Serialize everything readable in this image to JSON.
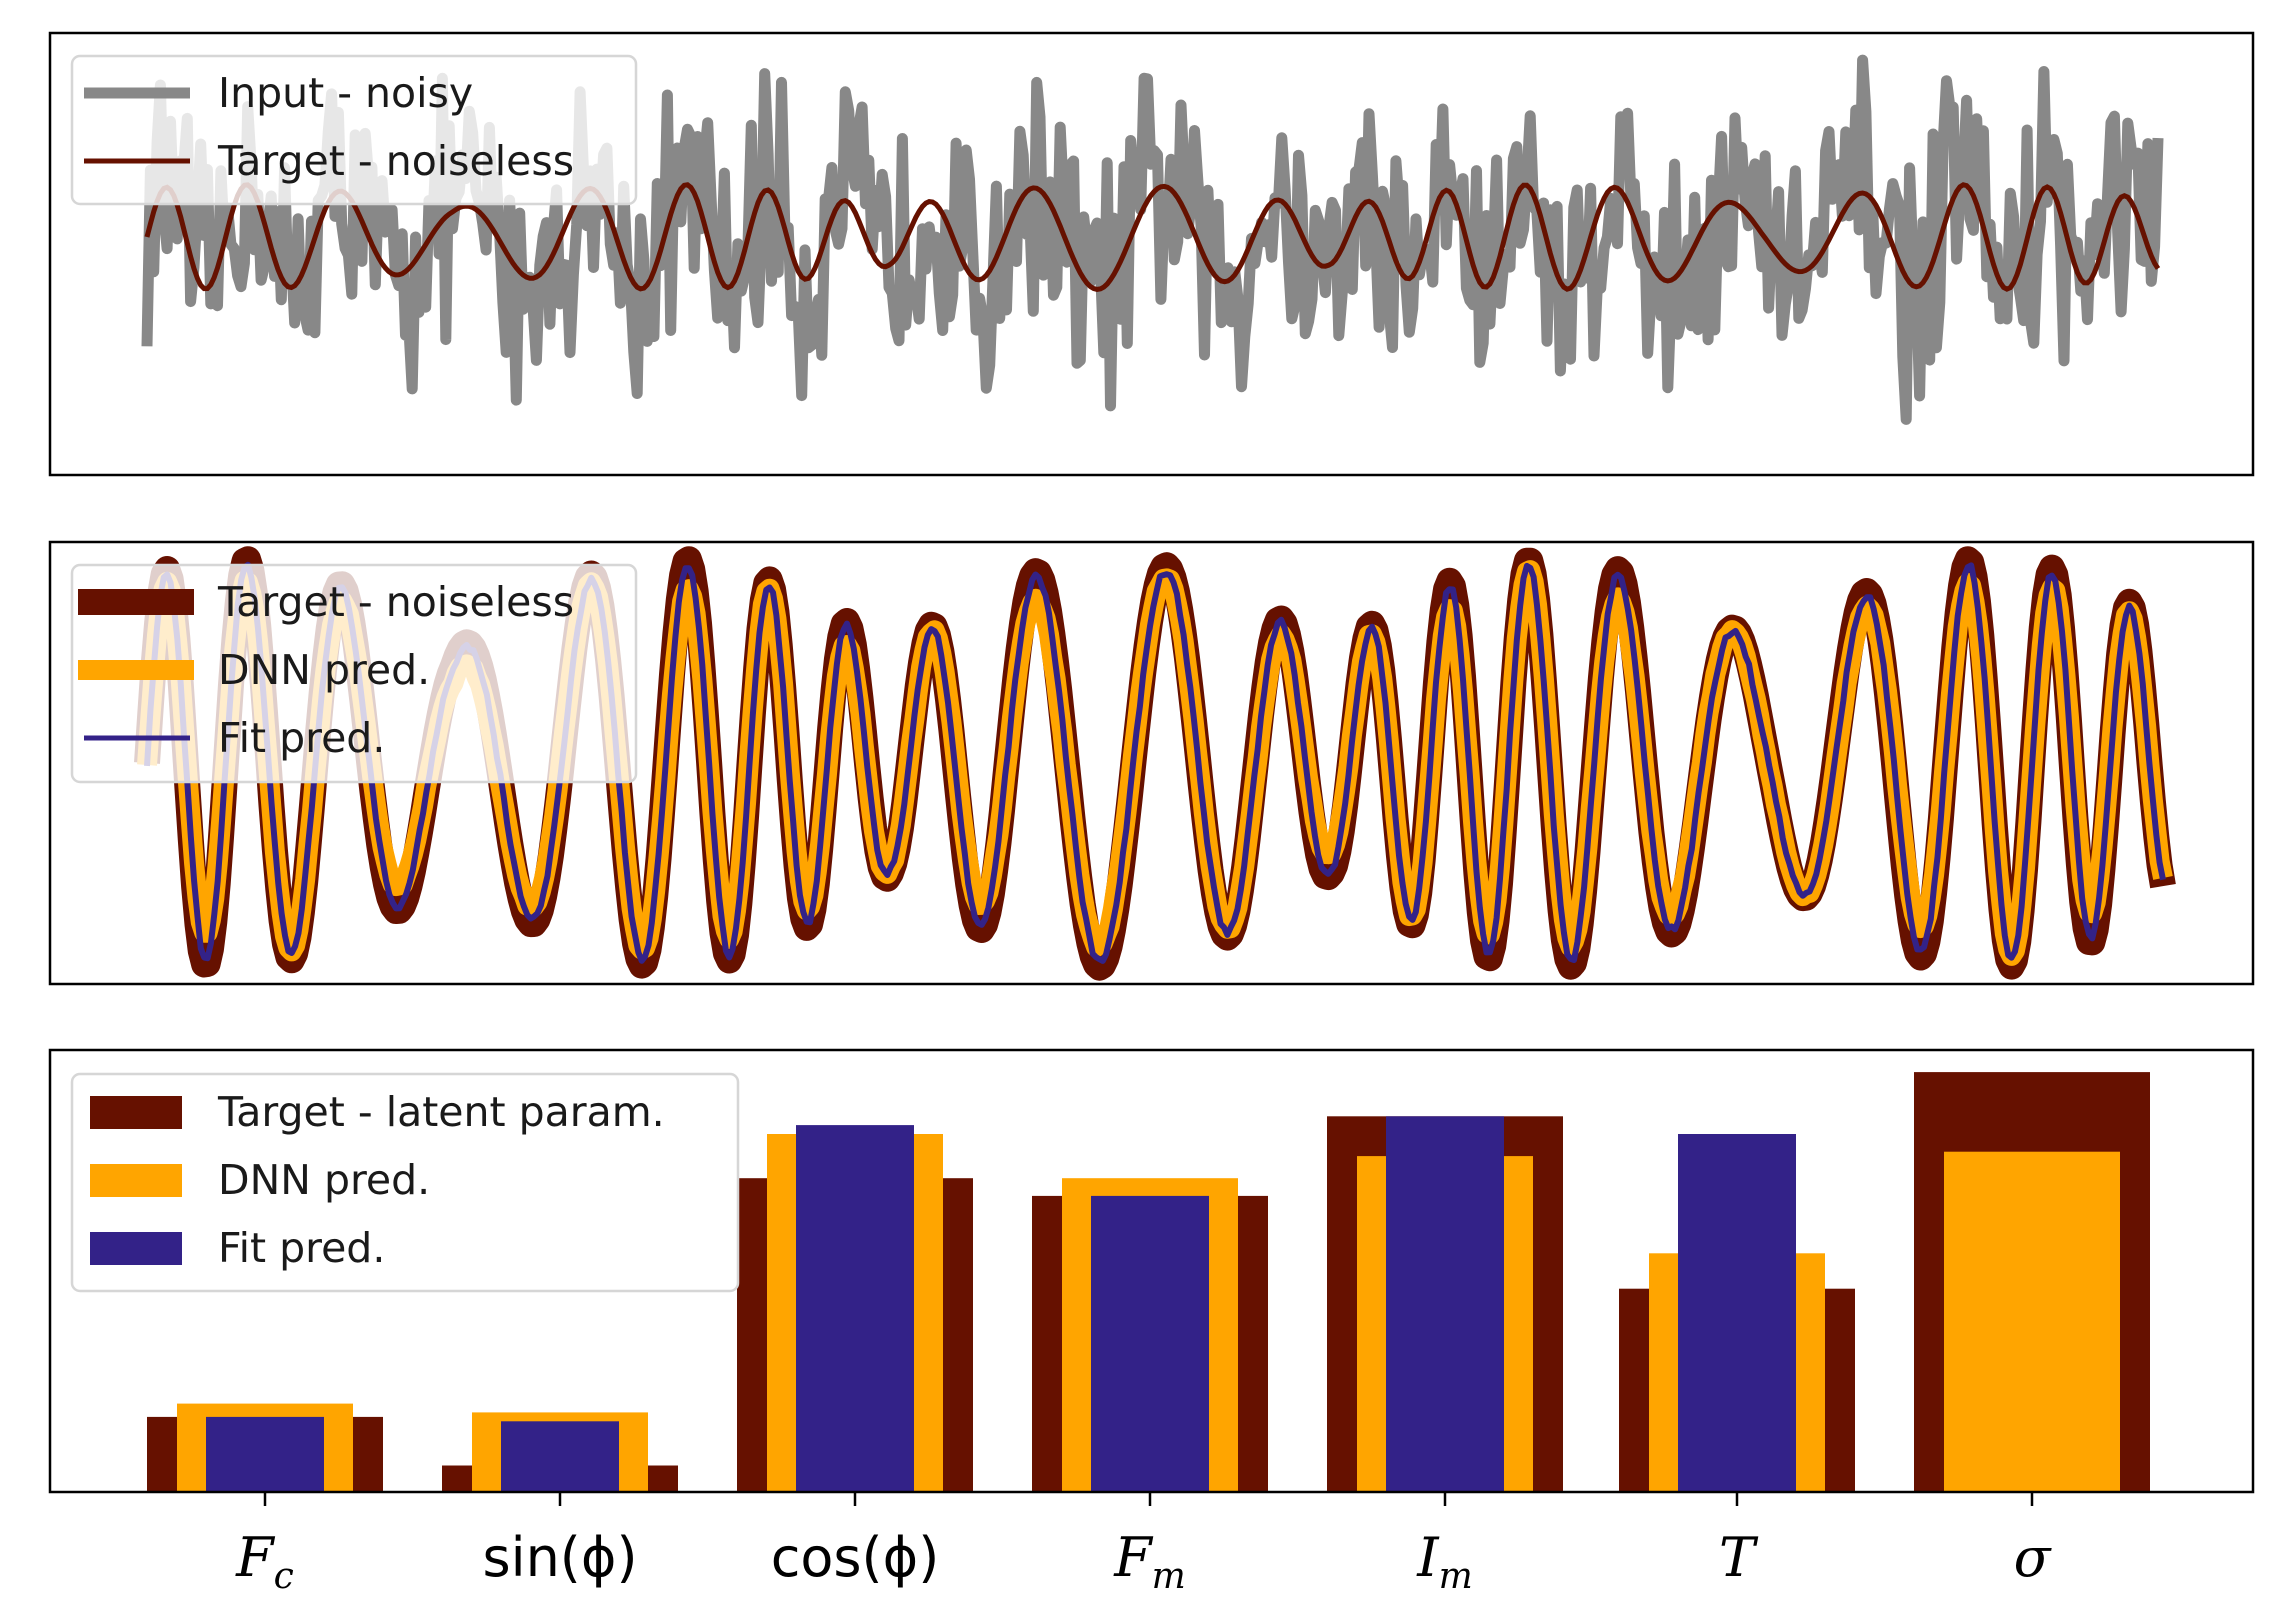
{
  "colors": {
    "input_noisy": "#888888",
    "target": "#661100",
    "dnn": "#ffa500",
    "fit": "#332288"
  },
  "chart_data": [
    {
      "type": "line",
      "panel": "top",
      "legend": [
        "Input - noisy",
        "Target - noiseless"
      ],
      "legend_position": "top-left",
      "grid": false,
      "xticks": false,
      "yticks": false,
      "series": [
        {
          "name": "Input - noisy",
          "style": "noisy thick gray line",
          "noise_amplitude": 0.45
        },
        {
          "name": "Target - noiseless",
          "style": "thin dark red line"
        }
      ]
    },
    {
      "type": "line",
      "panel": "middle",
      "legend": [
        "Target - noiseless",
        "DNN pred.",
        "Fit pred."
      ],
      "legend_position": "top-left",
      "grid": false,
      "xticks": false,
      "yticks": false,
      "series": [
        {
          "name": "Target - noiseless",
          "style": "thick dark red line"
        },
        {
          "name": "DNN pred.",
          "style": "thick orange line"
        },
        {
          "name": "Fit pred.",
          "style": "thin purple line"
        }
      ]
    },
    {
      "type": "bar",
      "panel": "bottom",
      "legend": [
        "Target - latent param.",
        "DNN pred.",
        "Fit pred."
      ],
      "legend_position": "top-left",
      "grid": false,
      "yticks": false,
      "ylim": [
        0,
        1.0
      ],
      "categories": [
        {
          "base": "F",
          "sub": "c",
          "italic": true
        },
        {
          "base": "sin(ϕ)",
          "sub": "",
          "italic": false
        },
        {
          "base": "cos(ϕ)",
          "sub": "",
          "italic": false
        },
        {
          "base": "F",
          "sub": "m",
          "italic": true
        },
        {
          "base": "I",
          "sub": "m",
          "italic": true
        },
        {
          "base": "T",
          "sub": "",
          "italic": true
        },
        {
          "base": "σ",
          "sub": "",
          "italic": true
        }
      ],
      "series": [
        {
          "name": "Target - latent param.",
          "values": [
            0.17,
            0.06,
            0.71,
            0.67,
            0.85,
            0.46,
            0.95
          ]
        },
        {
          "name": "DNN pred.",
          "values": [
            0.2,
            0.18,
            0.81,
            0.71,
            0.76,
            0.54,
            0.77
          ]
        },
        {
          "name": "Fit pred.",
          "values": [
            0.17,
            0.16,
            0.83,
            0.67,
            0.85,
            0.81,
            0.0
          ]
        }
      ]
    }
  ]
}
